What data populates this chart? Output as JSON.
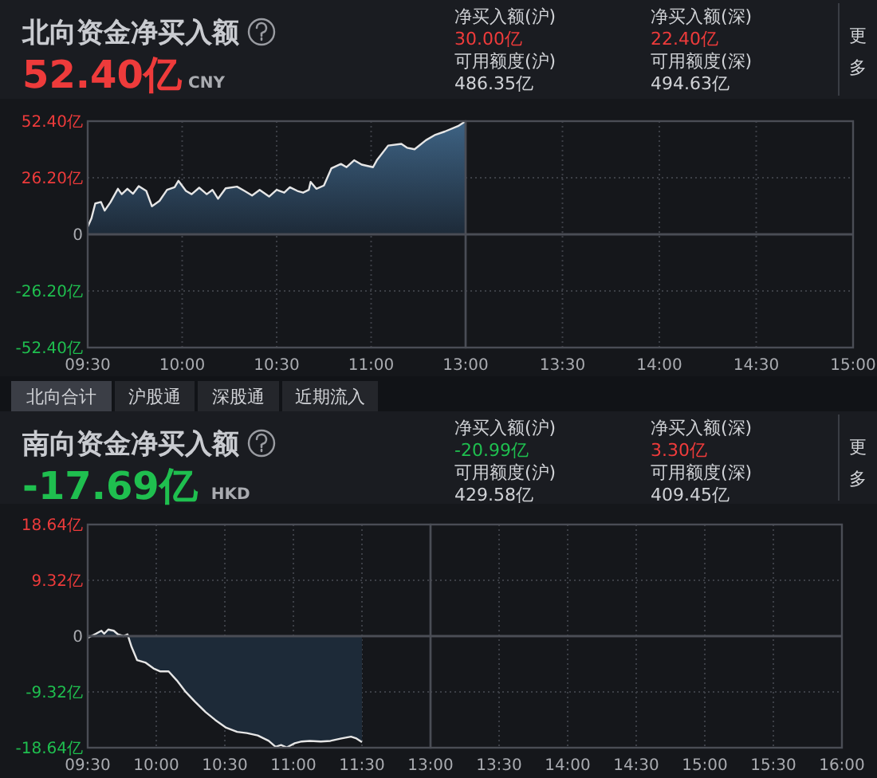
{
  "chart_data": [
    {
      "type": "area",
      "title": "北向资金净买入额",
      "subtitle": "52.40亿",
      "annotations": [
        "CNY",
        "净买入额(沪)",
        "30.00亿",
        "可用额度(沪)",
        "486.35亿",
        "净买入额(深)",
        "22.40亿",
        "可用额度(深)",
        "494.63亿",
        "更多",
        "北向合计",
        "沪股通",
        "深股通",
        "近期流入"
      ],
      "x": [
        9.5,
        9.52,
        9.54,
        9.57,
        9.59,
        9.62,
        9.66,
        9.68,
        9.71,
        9.74,
        9.77,
        9.81,
        9.84,
        9.88,
        9.92,
        9.96,
        9.98,
        10.02,
        10.05,
        10.09,
        10.13,
        10.16,
        10.19,
        10.23,
        10.29,
        10.33,
        10.37,
        10.41,
        10.46,
        10.5,
        10.54,
        10.57,
        10.61,
        10.64,
        10.67,
        10.68,
        10.71,
        10.75,
        10.79,
        10.84,
        10.87,
        10.91,
        10.95,
        11.01,
        11.03,
        11.09,
        11.16,
        11.19,
        11.23,
        11.29,
        11.34,
        11.39,
        11.46,
        11.5
      ],
      "series": [
        {
          "color": "#e6e6e6",
          "values": [
            3.5,
            7.5,
            14.3,
            15,
            11,
            14.8,
            21.1,
            18.6,
            21.1,
            18.8,
            22.3,
            20.1,
            13,
            15.5,
            20.6,
            21.8,
            24.8,
            20.1,
            18.6,
            21.6,
            18.6,
            20.6,
            16.5,
            21.3,
            22.1,
            20.1,
            18,
            20.6,
            17.5,
            20.6,
            19.3,
            21.8,
            20.1,
            19.3,
            20.6,
            24.3,
            21.1,
            22.6,
            30.6,
            32.6,
            31.1,
            34.3,
            32.3,
            31.1,
            34.3,
            41.1,
            41.9,
            40.1,
            39.4,
            43.6,
            46.1,
            47.6,
            50.1,
            52.4
          ]
        }
      ],
      "xlim": [
        9.5,
        11.5
      ],
      "xticks": [
        {
          "value": 9.5,
          "label": "09:30"
        },
        {
          "value": 10,
          "label": "10:00"
        },
        {
          "value": 10.5,
          "label": "10:30"
        },
        {
          "value": 11,
          "label": "11:00"
        },
        {
          "value": 11.5,
          "label": null
        }
      ],
      "ylim": [
        -52.4,
        52.4
      ],
      "yticks": [
        {
          "value": 52.4,
          "label": "52.40亿"
        },
        {
          "value": 26.2,
          "label": "26.20亿"
        },
        0,
        {
          "value": -26.2,
          "label": "-26.20亿"
        },
        {
          "value": -52.4,
          "label": "-52.40亿"
        }
      ],
      "grid": true
    },
    {
      "type": "area",
      "xlim": [
        13,
        15
      ],
      "xticks": [
        {
          "value": 13,
          "label": "13:00"
        },
        {
          "value": 13.5,
          "label": "13:30"
        },
        {
          "value": 14,
          "label": "14:00"
        },
        {
          "value": 14.5,
          "label": "14:30"
        },
        {
          "value": 15,
          "label": "15:00"
        }
      ],
      "ylim": [
        -52.4,
        52.4
      ],
      "yticks": [
        52.4,
        26.2,
        0,
        -26.2,
        -52.4
      ],
      "grid": true,
      "tick_labels": "x"
    },
    {
      "type": "area",
      "title": "南向资金净买入额",
      "subtitle": "-17.69亿",
      "annotations": [
        "HKD",
        "净买入额(沪)",
        "-20.99亿",
        "可用额度(沪)",
        "429.58亿",
        "净买入额(深)",
        "3.30亿",
        "可用额度(深)",
        "409.45亿",
        "更多"
      ],
      "x": [
        9.5,
        9.56,
        9.6,
        9.62,
        9.65,
        9.69,
        9.72,
        9.76,
        9.79,
        9.82,
        9.86,
        9.92,
        9.98,
        10.03,
        10.09,
        10.15,
        10.21,
        10.28,
        10.36,
        10.43,
        10.51,
        10.59,
        10.66,
        10.74,
        10.82,
        10.87,
        10.91,
        10.95,
        11.01,
        11.06,
        11.12,
        11.2,
        11.27,
        11.35,
        11.42,
        11.46,
        11.5
      ],
      "series": [
        {
          "color": "#e6e6e6",
          "values": [
            -0.3,
            0.4,
            0.9,
            0.4,
            1.1,
            0.9,
            0.3,
            0,
            0.3,
            -1.8,
            -4,
            -4.4,
            -5.4,
            -5.9,
            -5.9,
            -7.4,
            -9.2,
            -10.9,
            -12.7,
            -14,
            -15.3,
            -16,
            -16.2,
            -16.6,
            -17.5,
            -18.5,
            -18.2,
            -18.6,
            -17.9,
            -17.6,
            -17.5,
            -17.6,
            -17.5,
            -17.1,
            -16.8,
            -17.1,
            -17.7
          ]
        }
      ],
      "xlim": [
        9.5,
        12
      ],
      "xticks": [
        {
          "value": 9.5,
          "label": "09:30"
        },
        {
          "value": 10,
          "label": "10:00"
        },
        {
          "value": 10.5,
          "label": "10:30"
        },
        {
          "value": 11,
          "label": "11:00"
        },
        {
          "value": 11.5,
          "label": "11:30"
        },
        {
          "value": 12,
          "label": null
        }
      ],
      "ylim": [
        -18.64,
        18.64
      ],
      "yticks": [
        {
          "value": 18.64,
          "label": "18.64亿"
        },
        {
          "value": 9.32,
          "label": "9.32亿"
        },
        0,
        {
          "value": -9.32,
          "label": "-9.32亿"
        },
        {
          "value": -18.64,
          "label": "-18.64亿"
        }
      ],
      "grid": true
    },
    {
      "type": "area",
      "xlim": [
        13,
        16
      ],
      "xticks": [
        {
          "value": 13,
          "label": "13:00"
        },
        {
          "value": 13.5,
          "label": "13:30"
        },
        {
          "value": 14,
          "label": "14:00"
        },
        {
          "value": 14.5,
          "label": "14:30"
        },
        {
          "value": 15,
          "label": "15:00"
        },
        {
          "value": 15.5,
          "label": "15:30"
        },
        {
          "value": 16,
          "label": "16:00"
        }
      ],
      "ylim": [
        -18.64,
        18.64
      ],
      "yticks": [
        18.64,
        9.32,
        0,
        -9.32,
        -18.64
      ],
      "grid": true,
      "tick_labels": "x"
    }
  ]
}
